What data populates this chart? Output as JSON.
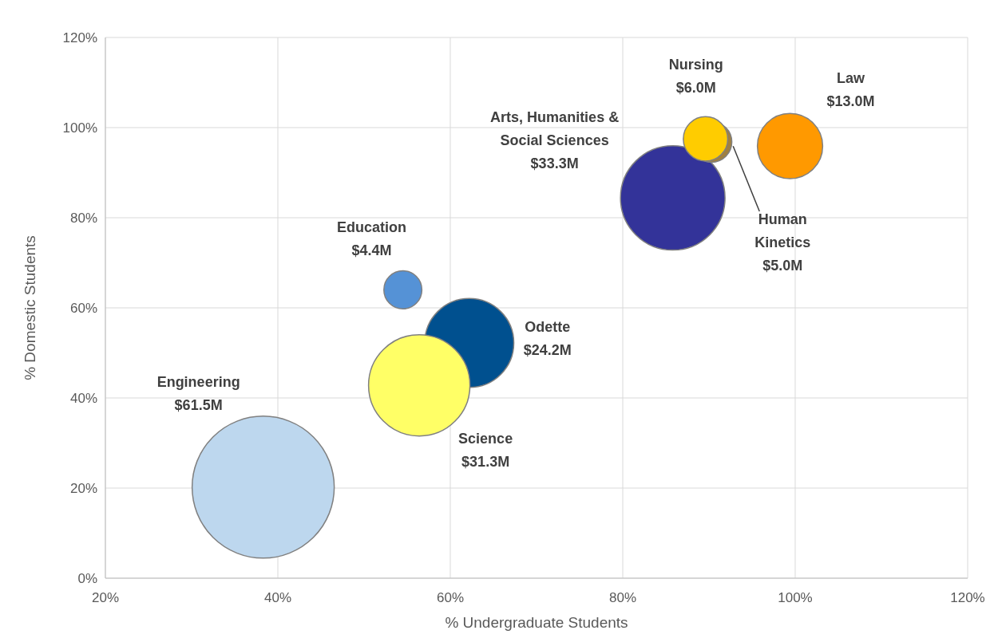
{
  "chart_data": {
    "type": "bubble",
    "xlabel": "% Undergraduate Students",
    "ylabel": "% Domestic Students",
    "xlim": [
      20,
      120
    ],
    "xticks": [
      {
        "value": 20,
        "label": "20%"
      },
      {
        "value": 40,
        "label": "40%"
      },
      {
        "value": 60,
        "label": "60%"
      },
      {
        "value": 80,
        "label": "80%"
      },
      {
        "value": 100,
        "label": "100%"
      },
      {
        "value": 120,
        "label": "120%"
      }
    ],
    "ylim": [
      0,
      120
    ],
    "yticks": [
      {
        "value": 0,
        "label": "0%"
      },
      {
        "value": 20,
        "label": "20%"
      },
      {
        "value": 40,
        "label": "40%"
      },
      {
        "value": 60,
        "label": "60%"
      },
      {
        "value": 80,
        "label": "80%"
      },
      {
        "value": 100,
        "label": "100%"
      },
      {
        "value": 120,
        "label": "120%"
      }
    ],
    "grid": true,
    "series": [
      {
        "x": [
          38.3,
          54.5,
          62.2,
          56.4,
          85.8,
          90.3,
          89.6,
          99.4
        ],
        "values": [
          20.2,
          64,
          52.2,
          42.8,
          84.4,
          96.8,
          97.5,
          95.9
        ],
        "sizes": [
          1,
          0.0715,
          0.393,
          0.509,
          0.541,
          0.0813,
          0.0976,
          0.211
        ],
        "colors": [
          "#bdd7ee",
          "#5592d6",
          "#00508f",
          "#ffff66",
          "#333399",
          "#a08040",
          "#ffcc00",
          "#ff9900"
        ]
      }
    ],
    "annotations": [
      "Engineering\n$61.5M",
      "Education\n$4.4M",
      "Odette\n$24.2M",
      "Science\n$31.3M",
      "Arts, Humanities &\nSocial Sciences\n$33.3M",
      {
        "text": "Human\nKinetics\n$5.0M",
        "x": 92.8,
        "y": 95.9
      },
      "Nursing\n$6.0M",
      "Law\n$13.0M"
    ]
  }
}
